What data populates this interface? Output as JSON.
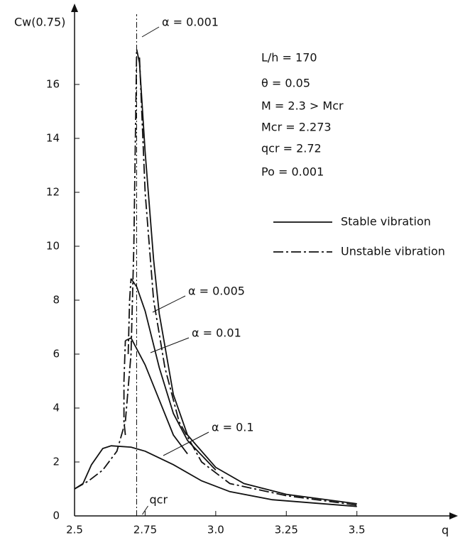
{
  "chart_data": {
    "type": "line",
    "y_label": "Cw(0.75)",
    "x_label": "q",
    "xlim": [
      2.5,
      3.8
    ],
    "ylim": [
      0,
      19
    ],
    "xticks": [
      2.5,
      2.75,
      {
        "value": 3,
        "label": "3.0"
      },
      3.25,
      3.5
    ],
    "yticks": [
      0,
      2,
      4,
      6,
      8,
      10,
      12,
      14,
      16
    ],
    "reference_line": {
      "x": 2.72,
      "label": "qcr"
    },
    "notes": [
      "L/h = 170",
      "θ = 0.05",
      "M = 2.3 > Mcr",
      "Mcr = 2.273",
      "qcr = 2.72",
      "Po = 0.001"
    ],
    "series": [
      {
        "name": "Stable vibration",
        "dash": "solid",
        "color": "#111",
        "curves": [
          {
            "label": "α = 0.001",
            "x": [
              2.72,
              2.73,
              2.75,
              2.78,
              2.8,
              2.85,
              2.9,
              3.0,
              3.1,
              3.25,
              3.5
            ],
            "values": [
              17.3,
              16.8,
              13.5,
              9.5,
              7.5,
              4.5,
              3.0,
              1.8,
              1.2,
              0.8,
              0.45
            ]
          },
          {
            "label": "α = 0.005",
            "x": [
              2.7,
              2.72,
              2.75,
              2.8,
              2.85,
              2.9,
              3.0
            ],
            "values": [
              8.8,
              8.5,
              7.6,
              5.5,
              3.8,
              2.8,
              1.7
            ]
          },
          {
            "label": "α = 0.01",
            "x": [
              2.68,
              2.7,
              2.75,
              2.8,
              2.85,
              2.9
            ],
            "values": [
              6.5,
              6.6,
              5.6,
              4.3,
              3.0,
              2.3
            ]
          },
          {
            "label": "α = 0.1",
            "x": [
              2.5,
              2.53,
              2.56,
              2.6,
              2.63,
              2.7,
              2.75,
              2.85,
              2.95,
              3.05,
              3.2,
              3.5
            ],
            "values": [
              1.0,
              1.2,
              1.9,
              2.5,
              2.6,
              2.55,
              2.4,
              1.9,
              1.3,
              0.9,
              0.6,
              0.35
            ]
          }
        ]
      },
      {
        "name": "Unstable vibration",
        "dash": "dashdot",
        "color": "#111",
        "curves": [
          {
            "x": [
              2.5,
              2.55,
              2.6,
              2.65,
              2.68,
              2.7,
              2.71,
              2.72
            ],
            "values": [
              1.0,
              1.3,
              1.7,
              2.4,
              3.5,
              6,
              10,
              17.3
            ]
          },
          {
            "x": [
              2.73,
              2.75,
              2.78,
              2.82,
              2.87,
              2.95,
              3.05,
              3.25,
              3.5
            ],
            "values": [
              17,
              12,
              8,
              5.5,
              3.5,
              2.0,
              1.2,
              0.75,
              0.4
            ]
          },
          {
            "x": [
              2.69,
              2.695,
              2.7
            ],
            "values": [
              6,
              8,
              8.8
            ]
          },
          {
            "x": [
              2.68,
              2.675,
              2.675,
              2.68
            ],
            "values": [
              3.0,
              3.5,
              5,
              6.5
            ]
          }
        ]
      }
    ]
  }
}
